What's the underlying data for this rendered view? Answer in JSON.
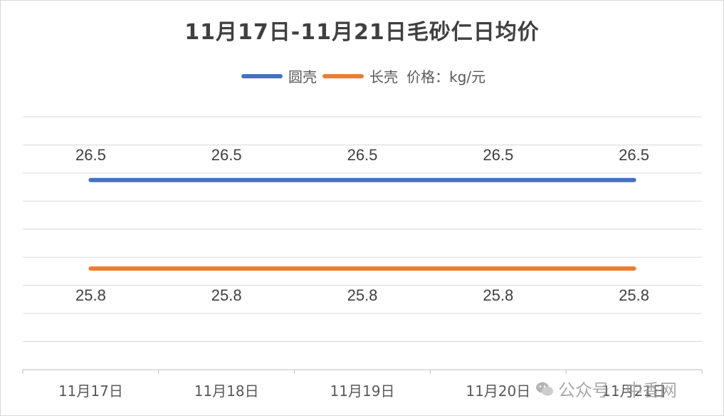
{
  "chart_data": {
    "type": "line",
    "title": "11月17日-11月21日毛砂仁日均价",
    "unit_note": "价格：kg/元",
    "categories": [
      "11月17日",
      "11月18日",
      "11月19日",
      "11月20日",
      "11月21日"
    ],
    "series": [
      {
        "name": "圆壳",
        "values": [
          26.5,
          26.5,
          26.5,
          26.5,
          26.5
        ],
        "color": "#4472c4",
        "label_position": "above"
      },
      {
        "name": "长壳",
        "values": [
          25.8,
          25.8,
          25.8,
          25.8,
          25.8
        ],
        "color": "#ed7d31",
        "label_position": "below"
      }
    ],
    "ylim": [
      25.0,
      27.0
    ],
    "grid": true,
    "legend": "top"
  },
  "watermark": {
    "text": "公众号 · 中香网"
  }
}
